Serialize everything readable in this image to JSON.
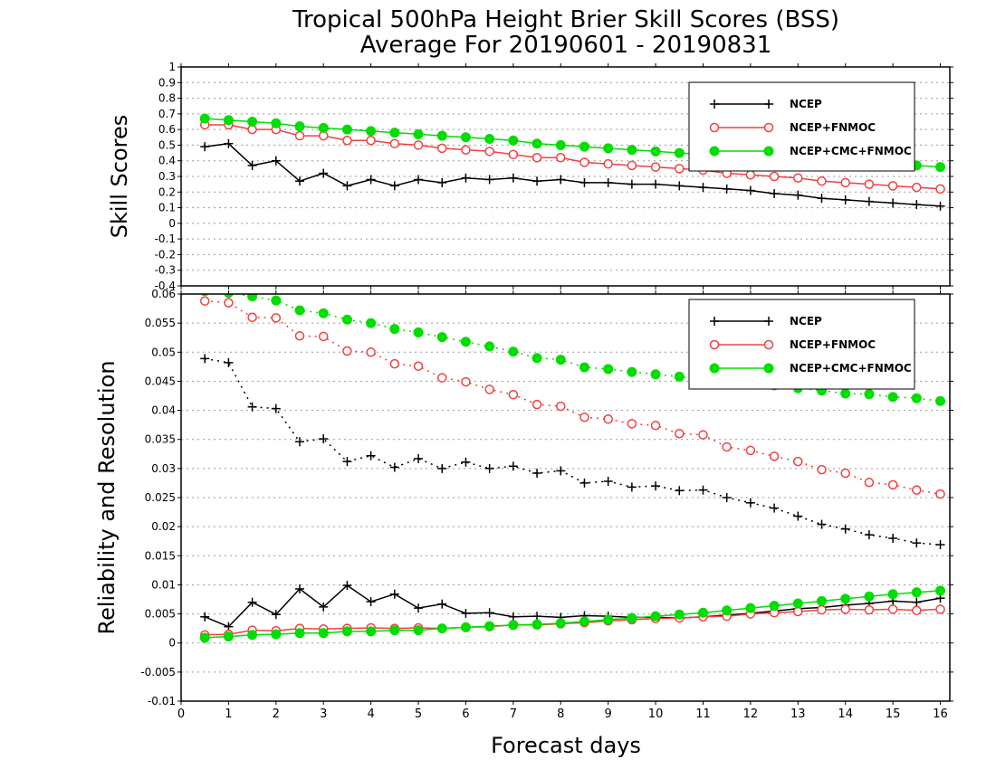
{
  "title": {
    "line1": "Tropical 500hPa Height Brier Skill Scores (BSS)",
    "line2": "Average For 20190601 - 20190831"
  },
  "xlabel": "Forecast days",
  "colors": {
    "NCEP": "#000000",
    "NCEP+FNMOC": "#f04040",
    "NCEP+CMC+FNMOC": "#00dd00",
    "grid": "#999999"
  },
  "chart_data": [
    {
      "type": "line",
      "ylabel": "Skill Scores",
      "xlim": [
        0,
        16.2
      ],
      "ylim": [
        -0.4,
        1
      ],
      "grid": true,
      "legend_placement": "top-right",
      "x_ticks": [
        0,
        1,
        2,
        3,
        4,
        5,
        6,
        7,
        8,
        9,
        10,
        11,
        12,
        13,
        14,
        15,
        16
      ],
      "y_ticks": [
        "-0.4",
        "-0.3",
        "-0.2",
        "-0.1",
        "0",
        "0.1",
        "0.2",
        "0.3",
        "0.4",
        "0.5",
        "0.6",
        "0.7",
        "0.8",
        "0.9",
        "1"
      ],
      "x": [
        0.5,
        1,
        1.5,
        2,
        2.5,
        3,
        3.5,
        4,
        4.5,
        5,
        5.5,
        6,
        6.5,
        7,
        7.5,
        8,
        8.5,
        9,
        9.5,
        10,
        10.5,
        11,
        11.5,
        12,
        12.5,
        13,
        13.5,
        14,
        14.5,
        15,
        15.5,
        16
      ],
      "series": [
        {
          "name": "NCEP",
          "marker": "plus",
          "style": "solid",
          "values": [
            0.49,
            0.51,
            0.37,
            0.4,
            0.27,
            0.32,
            0.24,
            0.28,
            0.24,
            0.28,
            0.26,
            0.29,
            0.28,
            0.29,
            0.27,
            0.28,
            0.26,
            0.26,
            0.25,
            0.25,
            0.24,
            0.23,
            0.22,
            0.21,
            0.19,
            0.18,
            0.16,
            0.15,
            0.14,
            0.13,
            0.12,
            0.11
          ]
        },
        {
          "name": "NCEP+FNMOC",
          "marker": "open-circle",
          "style": "solid",
          "values": [
            0.63,
            0.63,
            0.6,
            0.6,
            0.56,
            0.56,
            0.53,
            0.53,
            0.51,
            0.5,
            0.48,
            0.47,
            0.46,
            0.44,
            0.42,
            0.42,
            0.39,
            0.38,
            0.37,
            0.36,
            0.35,
            0.34,
            0.32,
            0.31,
            0.3,
            0.29,
            0.27,
            0.26,
            0.25,
            0.24,
            0.23,
            0.22
          ]
        },
        {
          "name": "NCEP+CMC+FNMOC",
          "marker": "filled-circle",
          "style": "solid",
          "values": [
            0.67,
            0.66,
            0.65,
            0.64,
            0.62,
            0.61,
            0.6,
            0.59,
            0.58,
            0.57,
            0.56,
            0.55,
            0.54,
            0.53,
            0.51,
            0.5,
            0.49,
            0.48,
            0.47,
            0.46,
            0.45,
            0.44,
            0.43,
            0.42,
            0.41,
            0.4,
            0.39,
            0.38,
            0.38,
            0.37,
            0.37,
            0.36
          ]
        }
      ]
    },
    {
      "type": "line",
      "ylabel": "Reliability and Resolution",
      "xlim": [
        0,
        16.2
      ],
      "ylim": [
        -0.01,
        0.06
      ],
      "grid": true,
      "legend_placement": "top-right",
      "x_ticks": [
        0,
        1,
        2,
        3,
        4,
        5,
        6,
        7,
        8,
        9,
        10,
        11,
        12,
        13,
        14,
        15,
        16
      ],
      "y_ticks": [
        "-0.01",
        "-0.005",
        "0",
        "0.005",
        "0.01",
        "0.015",
        "0.02",
        "0.025",
        "0.03",
        "0.035",
        "0.04",
        "0.045",
        "0.05",
        "0.055",
        "0.06"
      ],
      "x": [
        0.5,
        1,
        1.5,
        2,
        2.5,
        3,
        3.5,
        4,
        4.5,
        5,
        5.5,
        6,
        6.5,
        7,
        7.5,
        8,
        8.5,
        9,
        9.5,
        10,
        10.5,
        11,
        11.5,
        12,
        12.5,
        13,
        13.5,
        14,
        14.5,
        15,
        15.5,
        16
      ],
      "series": [
        {
          "name": "NCEP",
          "group": "resolution",
          "marker": "plus",
          "style": "dotted",
          "values": [
            0.0489,
            0.0482,
            0.0406,
            0.0403,
            0.0346,
            0.0351,
            0.0312,
            0.0322,
            0.0302,
            0.0317,
            0.03,
            0.0311,
            0.03,
            0.0304,
            0.0292,
            0.0296,
            0.0275,
            0.0278,
            0.0268,
            0.027,
            0.0262,
            0.0263,
            0.025,
            0.0241,
            0.0232,
            0.0218,
            0.0204,
            0.0196,
            0.0186,
            0.018,
            0.0172,
            0.0169
          ]
        },
        {
          "name": "NCEP+FNMOC",
          "group": "resolution",
          "marker": "open-circle",
          "style": "dotted",
          "values": [
            0.0588,
            0.0585,
            0.056,
            0.0559,
            0.0528,
            0.0527,
            0.0502,
            0.05,
            0.048,
            0.0476,
            0.0456,
            0.0449,
            0.0436,
            0.0427,
            0.041,
            0.0407,
            0.0388,
            0.0385,
            0.0377,
            0.0374,
            0.036,
            0.0358,
            0.0337,
            0.0331,
            0.0321,
            0.0312,
            0.0298,
            0.0292,
            0.0276,
            0.0272,
            0.0263,
            0.0256
          ]
        },
        {
          "name": "NCEP+CMC+FNMOC",
          "group": "resolution",
          "marker": "filled-circle",
          "style": "dotted",
          "values": [
            0.0605,
            0.0602,
            0.0596,
            0.0589,
            0.0572,
            0.0567,
            0.0556,
            0.055,
            0.054,
            0.0534,
            0.0526,
            0.0518,
            0.051,
            0.0501,
            0.049,
            0.0487,
            0.0474,
            0.0471,
            0.0466,
            0.0462,
            0.0458,
            0.0453,
            0.045,
            0.0447,
            0.0443,
            0.0438,
            0.0434,
            0.0429,
            0.0428,
            0.0423,
            0.0421,
            0.0416
          ]
        },
        {
          "name": "NCEP",
          "group": "reliability",
          "marker": "plus",
          "style": "solid",
          "values": [
            0.0045,
            0.0028,
            0.007,
            0.0049,
            0.0093,
            0.0062,
            0.0099,
            0.0071,
            0.0084,
            0.006,
            0.0067,
            0.0051,
            0.0052,
            0.0045,
            0.0046,
            0.0044,
            0.0047,
            0.0046,
            0.0044,
            0.0044,
            0.0043,
            0.0045,
            0.0048,
            0.0051,
            0.0055,
            0.0059,
            0.0061,
            0.0065,
            0.0068,
            0.0072,
            0.007,
            0.0077
          ]
        },
        {
          "name": "NCEP+FNMOC",
          "group": "reliability",
          "marker": "open-circle",
          "style": "solid",
          "values": [
            0.0014,
            0.0015,
            0.0022,
            0.0021,
            0.0025,
            0.0024,
            0.0025,
            0.0026,
            0.0025,
            0.0026,
            0.0025,
            0.0027,
            0.0028,
            0.0031,
            0.0031,
            0.0033,
            0.0035,
            0.0038,
            0.004,
            0.0042,
            0.0043,
            0.0045,
            0.0046,
            0.005,
            0.0052,
            0.0054,
            0.0057,
            0.0058,
            0.0057,
            0.0058,
            0.0056,
            0.0058
          ]
        },
        {
          "name": "NCEP+CMC+FNMOC",
          "group": "reliability",
          "marker": "filled-circle",
          "style": "solid",
          "values": [
            0.0009,
            0.0011,
            0.0014,
            0.0015,
            0.0017,
            0.0017,
            0.002,
            0.002,
            0.0022,
            0.0022,
            0.0025,
            0.0027,
            0.0029,
            0.0031,
            0.0032,
            0.0034,
            0.0037,
            0.004,
            0.0043,
            0.0046,
            0.0049,
            0.0052,
            0.0056,
            0.006,
            0.0064,
            0.0068,
            0.0072,
            0.0076,
            0.008,
            0.0084,
            0.0087,
            0.009
          ]
        }
      ]
    }
  ]
}
